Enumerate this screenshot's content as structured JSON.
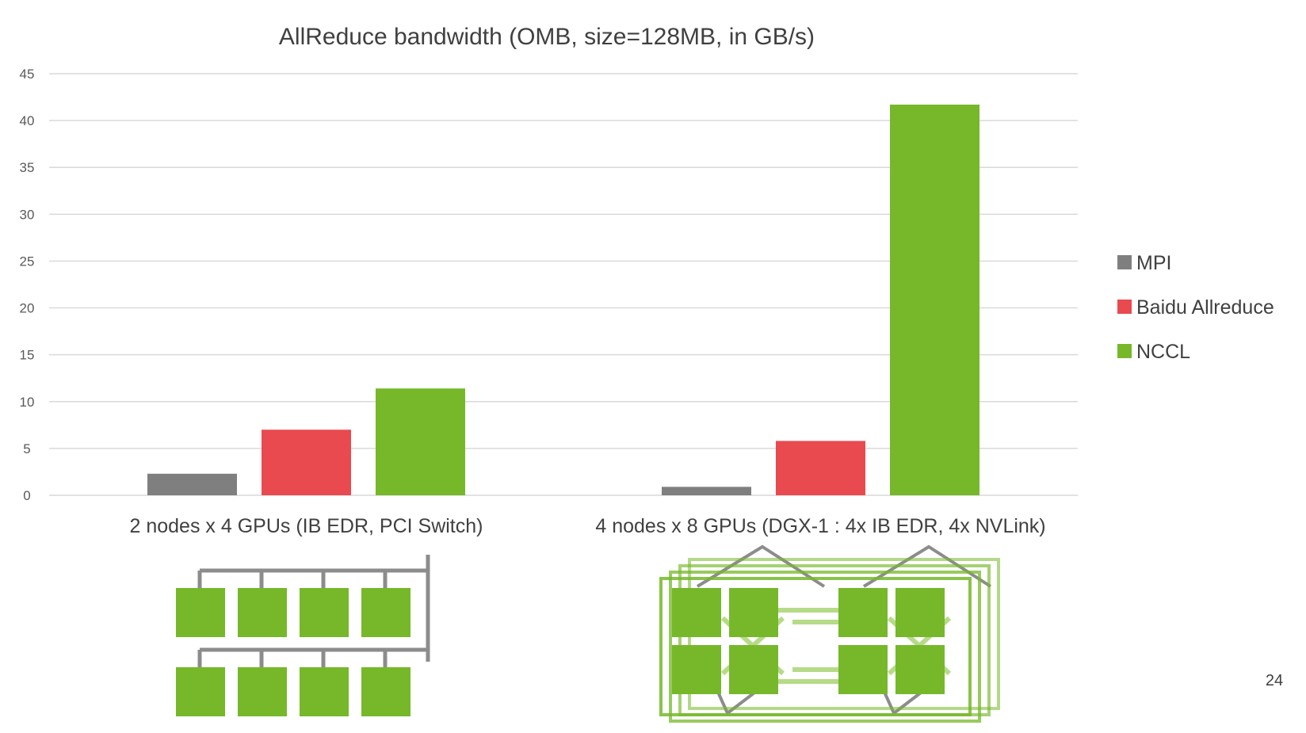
{
  "chart_data": {
    "type": "bar",
    "title": "AllReduce bandwidth (OMB, size=128MB, in GB/s)",
    "xlabel": "",
    "ylabel": "",
    "ylim": [
      0,
      45
    ],
    "yticks": [
      0,
      5,
      10,
      15,
      20,
      25,
      30,
      35,
      40,
      45
    ],
    "grid": true,
    "legend_position": "right",
    "categories": [
      "2 nodes x 4 GPUs (IB EDR, PCI Switch)",
      "4 nodes x 8 GPUs (DGX-1 : 4x IB EDR, 4x NVLink)"
    ],
    "series": [
      {
        "name": "MPI",
        "color": "#7f7f7f",
        "values": [
          2.3,
          0.9
        ]
      },
      {
        "name": "Baidu Allreduce",
        "color": "#e84a4f",
        "values": [
          7.0,
          5.8
        ]
      },
      {
        "name": "NCCL",
        "color": "#76b82a",
        "values": [
          11.4,
          41.7
        ]
      }
    ]
  },
  "slide": {
    "page_number": "24"
  },
  "colors": {
    "gpu_green": "#76b82a",
    "connector_gray": "#8c8c8c",
    "grid": "#d9d9d9",
    "text": "#404040"
  }
}
